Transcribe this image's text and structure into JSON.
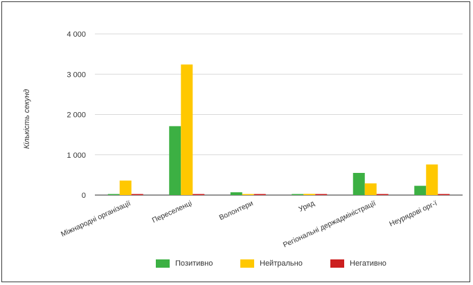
{
  "chart_data": {
    "type": "bar",
    "title": "",
    "xlabel": "",
    "ylabel": "Кількість секунд",
    "ylim": [
      0,
      4000
    ],
    "yticks": [
      "0",
      "1 000",
      "2 000",
      "3 000",
      "4 000"
    ],
    "ytick_values": [
      0,
      1000,
      2000,
      3000,
      4000
    ],
    "categories": [
      "Міжнародні організації",
      "Переселенці",
      "Волонтери",
      "Уряд",
      "Регіональні держадміністрації",
      "Неурядові орг-ї"
    ],
    "series": [
      {
        "name": "Позитивно",
        "color": "#3cb043",
        "values": [
          0,
          1710,
          70,
          0,
          550,
          230
        ]
      },
      {
        "name": "Нейтрально",
        "color": "#ffc800",
        "values": [
          360,
          3240,
          20,
          30,
          290,
          760
        ]
      },
      {
        "name": "Негативно",
        "color": "#cc1f1f",
        "values": [
          0,
          0,
          0,
          0,
          0,
          0
        ]
      }
    ],
    "grid": true,
    "legend_position": "bottom"
  }
}
